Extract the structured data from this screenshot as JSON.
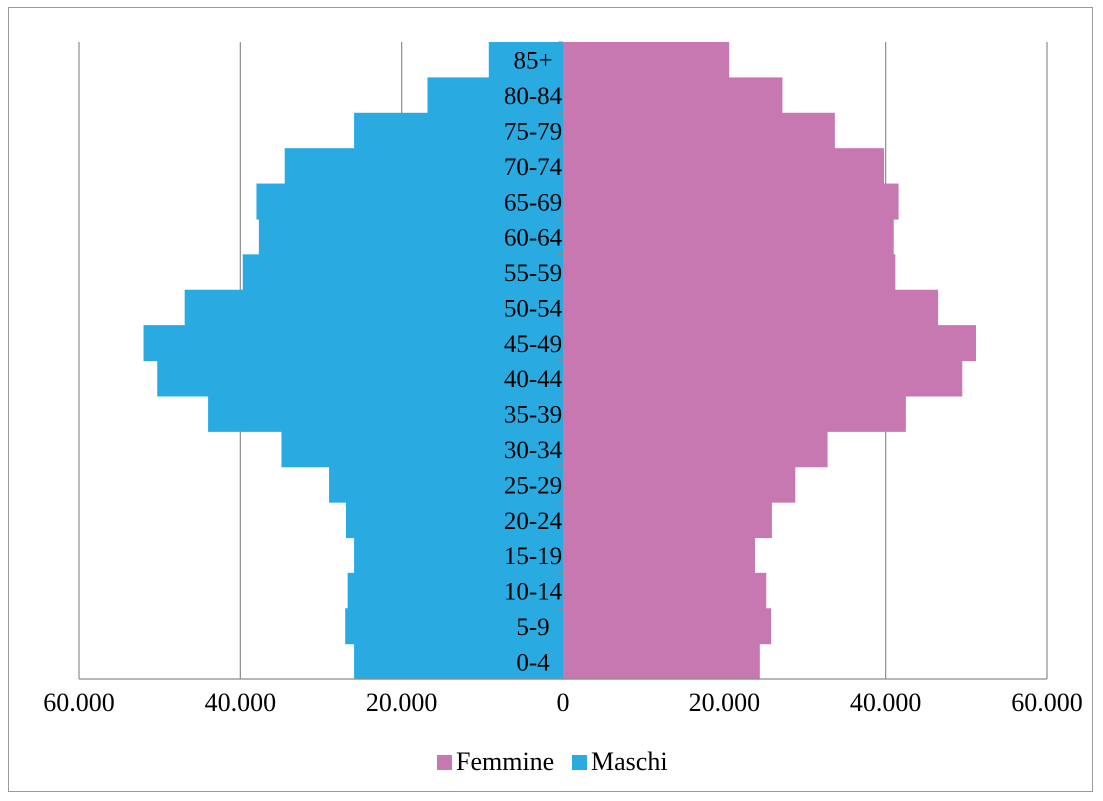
{
  "chart_data": {
    "type": "bar",
    "orientation": "horizontal",
    "layout": "population-pyramid",
    "categories": [
      "0-4",
      "5-9",
      "10-14",
      "15-19",
      "20-24",
      "25-29",
      "30-34",
      "35-39",
      "40-44",
      "45-49",
      "50-54",
      "55-59",
      "60-64",
      "65-69",
      "70-74",
      "75-79",
      "80-84",
      "85+"
    ],
    "series": [
      {
        "name": "Maschi",
        "color": "#29abe2",
        "side": "left",
        "values": [
          25900,
          27000,
          26700,
          25900,
          26900,
          29000,
          34900,
          44000,
          50300,
          52000,
          46900,
          39700,
          37700,
          38000,
          34500,
          25900,
          16800,
          9200
        ]
      },
      {
        "name": "Femmine",
        "color": "#c878b0",
        "side": "right",
        "values": [
          24400,
          25800,
          25200,
          23800,
          25900,
          28800,
          32800,
          42500,
          49500,
          51200,
          46500,
          41200,
          41000,
          41600,
          39800,
          33700,
          27200,
          20600
        ]
      }
    ],
    "xlim": [
      -60000,
      60000
    ],
    "x_tick_labels": [
      "60.000",
      "40.000",
      "20.000",
      "0",
      "20.000",
      "40.000",
      "60.000"
    ],
    "legend": {
      "position": "bottom",
      "order": [
        "Femmine",
        "Maschi"
      ]
    },
    "grid": {
      "vertical": true,
      "horizontal": false
    },
    "title": "",
    "xlabel": "",
    "ylabel": ""
  }
}
